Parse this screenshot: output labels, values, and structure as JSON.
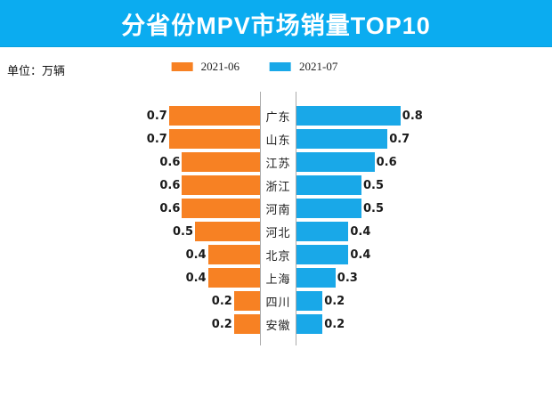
{
  "header": {
    "title": "分省份MPV市场销量TOP10",
    "bg_color": "#0bacf0",
    "text_color": "#ffffff"
  },
  "unit_label": "单位：万辆",
  "legend": [
    {
      "label": "2021-06",
      "color": "#f78123"
    },
    {
      "label": "2021-07",
      "color": "#19a8e8"
    }
  ],
  "chart_data": {
    "type": "bar",
    "variant": "bidirectional-tornado",
    "title": "分省份MPV市场销量TOP10",
    "unit": "万辆",
    "categories": [
      "广东",
      "山东",
      "江苏",
      "浙江",
      "河南",
      "河北",
      "北京",
      "上海",
      "四川",
      "安徽"
    ],
    "series": [
      {
        "name": "2021-06",
        "side": "left",
        "color": "#f78123",
        "values": [
          0.7,
          0.7,
          0.6,
          0.6,
          0.6,
          0.5,
          0.4,
          0.4,
          0.2,
          0.2
        ]
      },
      {
        "name": "2021-07",
        "side": "right",
        "color": "#19a8e8",
        "values": [
          0.8,
          0.7,
          0.6,
          0.5,
          0.5,
          0.4,
          0.4,
          0.3,
          0.2,
          0.2
        ]
      }
    ],
    "value_axis_max": 0.85,
    "grid": false,
    "legend_position": "top",
    "value_labels": "outside-bar-ends"
  }
}
